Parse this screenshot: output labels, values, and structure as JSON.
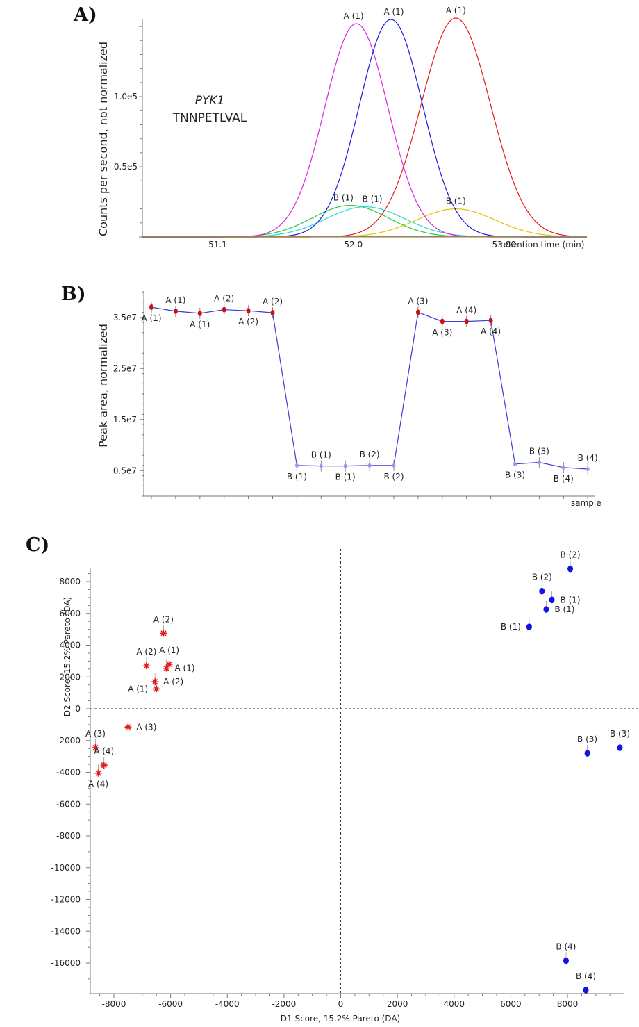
{
  "panels": {
    "a": "A)",
    "b": "B)",
    "c": "C)"
  },
  "chart_data": [
    {
      "type": "line",
      "panel": "A)",
      "annotation_italic": "PYK1",
      "annotation": "TNNPETLVAL",
      "ylabel": "Counts per second, not normalized",
      "xlabel": "retention time (min)",
      "xlim": [
        50.6,
        53.55
      ],
      "ylim": [
        0,
        155000
      ],
      "xticks": [
        {
          "v": 51.1,
          "label": "51.1"
        },
        {
          "v": 52.0,
          "label": "52.0"
        },
        {
          "v": 53.0,
          "label": "53.00"
        }
      ],
      "yticks": [
        {
          "v": 50000,
          "label": "0.5e5"
        },
        {
          "v": 100000,
          "label": "1.0e5"
        }
      ],
      "series": [
        {
          "name": "A (1)",
          "color": "#dd22dd",
          "mu": 52.02,
          "sigma": 0.21,
          "peak": 152000
        },
        {
          "name": "A (1)",
          "color": "#1a1adb",
          "mu": 52.25,
          "sigma": 0.21,
          "peak": 155000
        },
        {
          "name": "A (1)",
          "color": "#e41a1a",
          "mu": 52.68,
          "sigma": 0.23,
          "peak": 156000
        },
        {
          "name": "B (1)",
          "color": "#22cc33",
          "mu": 51.98,
          "sigma": 0.25,
          "peak": 22500
        },
        {
          "name": "B (1)",
          "color": "#22dddd",
          "mu": 52.08,
          "sigma": 0.26,
          "peak": 21500
        },
        {
          "name": "B (1)",
          "color": "#e6c200",
          "mu": 52.68,
          "sigma": 0.26,
          "peak": 20000
        }
      ]
    },
    {
      "type": "line",
      "panel": "B)",
      "ylabel": "Peak area, normalized",
      "xlabel": "sample",
      "ylim": [
        0,
        40000000
      ],
      "yticks": [
        {
          "v": 5000000,
          "label": "0.5e7"
        },
        {
          "v": 15000000,
          "label": "1.5e7"
        },
        {
          "v": 25000000,
          "label": "2.5e7"
        },
        {
          "v": 35000000,
          "label": "3.5e7"
        }
      ],
      "color": "#3b3bdb",
      "points": [
        {
          "label": "A (1)",
          "value": 37000000,
          "group": "A",
          "pos": "below"
        },
        {
          "label": "A (1)",
          "value": 36200000,
          "group": "A",
          "pos": "above"
        },
        {
          "label": "A (1)",
          "value": 35800000,
          "group": "A",
          "pos": "below"
        },
        {
          "label": "A (2)",
          "value": 36500000,
          "group": "A",
          "pos": "above"
        },
        {
          "label": "A (2)",
          "value": 36300000,
          "group": "A",
          "pos": "below"
        },
        {
          "label": "A (2)",
          "value": 35900000,
          "group": "A",
          "pos": "above"
        },
        {
          "label": "B (1)",
          "value": 6000000,
          "group": "B",
          "pos": "below"
        },
        {
          "label": "B (1)",
          "value": 5900000,
          "group": "B",
          "pos": "above"
        },
        {
          "label": "B (1)",
          "value": 5900000,
          "group": "B",
          "pos": "below"
        },
        {
          "label": "B (2)",
          "value": 6000000,
          "group": "B",
          "pos": "above"
        },
        {
          "label": "B (2)",
          "value": 6000000,
          "group": "B",
          "pos": "below"
        },
        {
          "label": "A (3)",
          "value": 36000000,
          "group": "A",
          "pos": "above"
        },
        {
          "label": "A (3)",
          "value": 34200000,
          "group": "A",
          "pos": "below"
        },
        {
          "label": "A (4)",
          "value": 34200000,
          "group": "A",
          "pos": "above"
        },
        {
          "label": "A (4)",
          "value": 34400000,
          "group": "A",
          "pos": "below"
        },
        {
          "label": "B (3)",
          "value": 6300000,
          "group": "B",
          "pos": "below"
        },
        {
          "label": "B (3)",
          "value": 6600000,
          "group": "B",
          "pos": "above"
        },
        {
          "label": "B (4)",
          "value": 5600000,
          "group": "B",
          "pos": "below"
        },
        {
          "label": "B (4)",
          "value": 5300000,
          "group": "B",
          "pos": "above"
        }
      ]
    },
    {
      "type": "scatter",
      "panel": "C)",
      "xlabel": "D1 Score, 15.2% Pareto (DA)",
      "ylabel": "D2 Score, 15.2% Pareto (DA)",
      "xlim": [
        -8900,
        10000
      ],
      "ylim": [
        -17700,
        9100
      ],
      "xticks": [
        -8000,
        -6000,
        -4000,
        -2000,
        0,
        2000,
        4000,
        6000,
        8000
      ],
      "yticks": [
        8000,
        6000,
        4000,
        2000,
        0,
        -2000,
        -4000,
        -6000,
        -8000,
        -10000,
        -12000,
        -14000,
        -16000
      ],
      "series": [
        {
          "group": "A",
          "color": "#e41a1a",
          "marker": "asterisk",
          "points": [
            {
              "x": -6250,
              "y": 4750,
              "label": "A (2)",
              "lpos": "above"
            },
            {
              "x": -6850,
              "y": 2700,
              "label": "A (2)",
              "lpos": "above"
            },
            {
              "x": -6050,
              "y": 2800,
              "label": "A (1)",
              "lpos": "above"
            },
            {
              "x": -6150,
              "y": 2550,
              "label": "A (1)",
              "lpos": "right"
            },
            {
              "x": -6550,
              "y": 1700,
              "label": "A (2)",
              "lpos": "right"
            },
            {
              "x": -6500,
              "y": 1250,
              "label": "A (1)",
              "lpos": "left"
            },
            {
              "x": -7500,
              "y": -1150,
              "label": "A (3)",
              "lpos": "right"
            },
            {
              "x": -8650,
              "y": -2450,
              "label": "A (3)",
              "lpos": "above"
            },
            {
              "x": -8350,
              "y": -3550,
              "label": "A (4)",
              "lpos": "above"
            },
            {
              "x": -8550,
              "y": -4050,
              "label": "A (4)",
              "lpos": "below"
            }
          ]
        },
        {
          "group": "B",
          "color": "#1414e0",
          "marker": "circle",
          "points": [
            {
              "x": 8100,
              "y": 8800,
              "label": "B (2)",
              "lpos": "above"
            },
            {
              "x": 7100,
              "y": 7400,
              "label": "B (2)",
              "lpos": "above"
            },
            {
              "x": 7450,
              "y": 6850,
              "label": "B (1)",
              "lpos": "right"
            },
            {
              "x": 7250,
              "y": 6250,
              "label": "B (1)",
              "lpos": "right"
            },
            {
              "x": 6650,
              "y": 5150,
              "label": "B (1)",
              "lpos": "left"
            },
            {
              "x": 8700,
              "y": -2800,
              "label": "B (3)",
              "lpos": "above"
            },
            {
              "x": 9850,
              "y": -2450,
              "label": "B (3)",
              "lpos": "above"
            },
            {
              "x": 7950,
              "y": -15850,
              "label": "B (4)",
              "lpos": "above"
            },
            {
              "x": 8650,
              "y": -17700,
              "label": "B (4)",
              "lpos": "above"
            }
          ]
        }
      ]
    }
  ]
}
